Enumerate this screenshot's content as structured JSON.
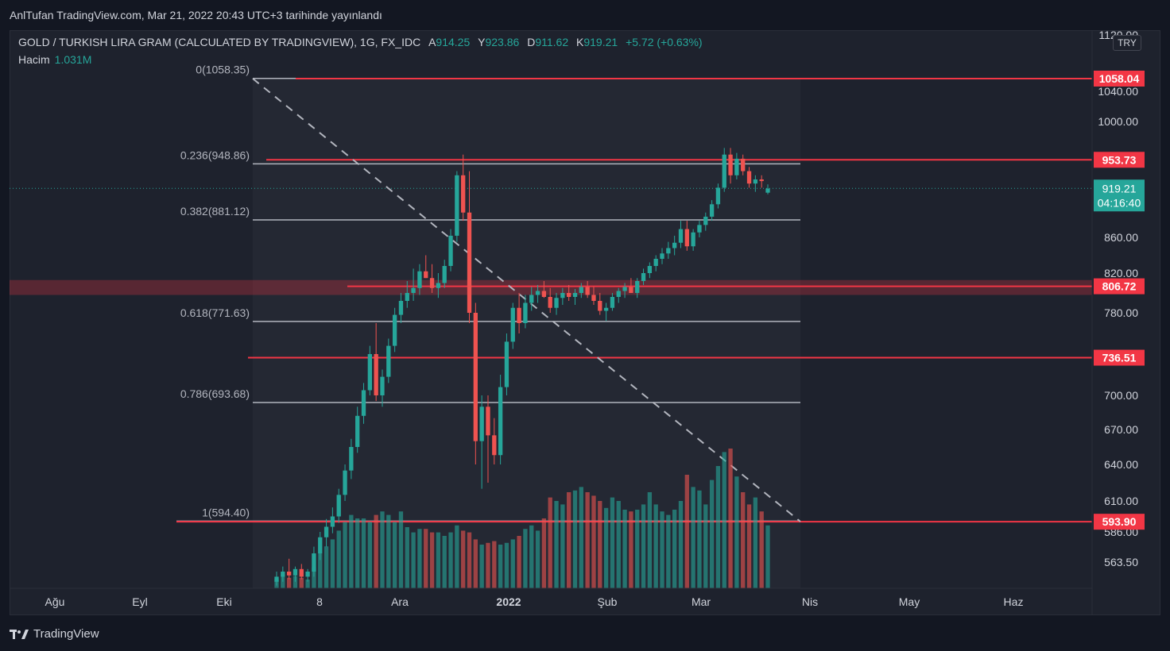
{
  "header": {
    "published": "AnlTufan TradingView.com, Mar 21, 2022 20:43 UTC+3 tarihinde yayınlandı"
  },
  "legend": {
    "symbol": "GOLD / TURKISH LIRA GRAM (CALCULATED BY TRADINGVIEW), 1G, FX_IDC",
    "open_label": "A",
    "open": "914.25",
    "high_label": "Y",
    "high": "923.86",
    "low_label": "D",
    "low": "911.62",
    "close_label": "K",
    "close": "919.21",
    "change": "+5.72 (+0.63%)",
    "volume_label": "Hacim",
    "volume": "1.031M"
  },
  "currency": "TRY",
  "brand": "TradingView",
  "chart_data": {
    "type": "candlestick",
    "y_range": [
      540,
      1130
    ],
    "y_ticks": [
      "1120.00",
      "1040.00",
      "1000.00",
      "860.00",
      "820.00",
      "780.00",
      "700.00",
      "670.00",
      "640.00",
      "610.00",
      "586.00",
      "563.50"
    ],
    "x_labels": [
      "Ağu",
      "Eyl",
      "Eki",
      "8",
      "Ara",
      "2022",
      "Şub",
      "Mar",
      "Nis",
      "May",
      "Haz"
    ],
    "last_price": "919.21",
    "countdown": "04:16:40",
    "fib_levels": [
      {
        "label": "0(1058.35)",
        "value": 1058.35
      },
      {
        "label": "0.236(948.86)",
        "value": 948.86
      },
      {
        "label": "0.382(881.12)",
        "value": 881.12
      },
      {
        "label": "0.618(771.63)",
        "value": 771.63
      },
      {
        "label": "0.786(693.68)",
        "value": 693.68
      },
      {
        "label": "1(594.40)",
        "value": 594.4
      }
    ],
    "horizontal_lines": [
      {
        "label": "1058.04",
        "value": 1058.04
      },
      {
        "label": "953.73",
        "value": 953.73
      },
      {
        "label": "806.72",
        "value": 806.72
      },
      {
        "label": "736.51",
        "value": 736.51
      },
      {
        "label": "593.90",
        "value": 593.9
      }
    ],
    "zone": {
      "from": 798,
      "to": 813
    },
    "trendline": {
      "from": [
        "2021-10-20",
        1058
      ],
      "to": [
        "2022-03-31",
        594
      ]
    },
    "candles_ohlc": [
      [
        548,
        556,
        545,
        552
      ],
      [
        552,
        560,
        548,
        556
      ],
      [
        556,
        566,
        550,
        553
      ],
      [
        553,
        560,
        548,
        558
      ],
      [
        558,
        562,
        550,
        552
      ],
      [
        552,
        558,
        548,
        556
      ],
      [
        556,
        575,
        552,
        570
      ],
      [
        570,
        586,
        565,
        582
      ],
      [
        582,
        596,
        575,
        590
      ],
      [
        590,
        605,
        585,
        598
      ],
      [
        598,
        620,
        593,
        615
      ],
      [
        615,
        640,
        610,
        635
      ],
      [
        635,
        662,
        628,
        655
      ],
      [
        655,
        690,
        650,
        682
      ],
      [
        682,
        712,
        675,
        705
      ],
      [
        705,
        748,
        700,
        740
      ],
      [
        740,
        770,
        695,
        700
      ],
      [
        700,
        725,
        690,
        718
      ],
      [
        718,
        755,
        712,
        748
      ],
      [
        748,
        785,
        742,
        778
      ],
      [
        778,
        800,
        770,
        792
      ],
      [
        792,
        812,
        785,
        800
      ],
      [
        800,
        825,
        792,
        805
      ],
      [
        805,
        830,
        798,
        822
      ],
      [
        822,
        840,
        815,
        815
      ],
      [
        815,
        830,
        800,
        805
      ],
      [
        805,
        820,
        795,
        810
      ],
      [
        810,
        835,
        805,
        828
      ],
      [
        828,
        870,
        822,
        862
      ],
      [
        862,
        940,
        855,
        935
      ],
      [
        935,
        960,
        880,
        890
      ],
      [
        890,
        940,
        770,
        780
      ],
      [
        780,
        790,
        640,
        660
      ],
      [
        660,
        700,
        620,
        690
      ],
      [
        690,
        700,
        625,
        665
      ],
      [
        665,
        680,
        640,
        648
      ],
      [
        648,
        720,
        640,
        708
      ],
      [
        708,
        760,
        700,
        752
      ],
      [
        752,
        790,
        745,
        785
      ],
      [
        785,
        800,
        760,
        770
      ],
      [
        770,
        798,
        765,
        790
      ],
      [
        790,
        806,
        782,
        798
      ],
      [
        798,
        808,
        790,
        802
      ],
      [
        802,
        812,
        795,
        796
      ],
      [
        796,
        805,
        780,
        785
      ],
      [
        785,
        800,
        778,
        795
      ],
      [
        795,
        805,
        788,
        800
      ],
      [
        800,
        808,
        792,
        796
      ],
      [
        796,
        804,
        788,
        800
      ],
      [
        800,
        810,
        795,
        806
      ],
      [
        806,
        812,
        795,
        798
      ],
      [
        798,
        806,
        788,
        792
      ],
      [
        792,
        800,
        778,
        782
      ],
      [
        782,
        790,
        772,
        785
      ],
      [
        785,
        800,
        782,
        796
      ],
      [
        796,
        805,
        790,
        802
      ],
      [
        802,
        810,
        795,
        806
      ],
      [
        806,
        815,
        800,
        800
      ],
      [
        800,
        815,
        795,
        812
      ],
      [
        812,
        825,
        808,
        820
      ],
      [
        820,
        832,
        815,
        828
      ],
      [
        828,
        840,
        822,
        836
      ],
      [
        836,
        848,
        830,
        842
      ],
      [
        842,
        855,
        836,
        848
      ],
      [
        848,
        862,
        840,
        854
      ],
      [
        854,
        880,
        848,
        870
      ],
      [
        870,
        880,
        845,
        850
      ],
      [
        850,
        870,
        845,
        866
      ],
      [
        866,
        880,
        860,
        875
      ],
      [
        875,
        890,
        868,
        885
      ],
      [
        885,
        905,
        880,
        900
      ],
      [
        900,
        925,
        895,
        920
      ],
      [
        920,
        968,
        915,
        960
      ],
      [
        960,
        968,
        925,
        935
      ],
      [
        935,
        962,
        930,
        955
      ],
      [
        955,
        960,
        935,
        940
      ],
      [
        940,
        945,
        920,
        925
      ],
      [
        925,
        935,
        915,
        930
      ],
      [
        930,
        935,
        920,
        928
      ],
      [
        914,
        924,
        912,
        919
      ]
    ],
    "volume_relative": [
      0.05,
      0.08,
      0.06,
      0.07,
      0.06,
      0.05,
      0.12,
      0.2,
      0.24,
      0.28,
      0.33,
      0.38,
      0.42,
      0.4,
      0.4,
      0.38,
      0.42,
      0.44,
      0.42,
      0.38,
      0.44,
      0.35,
      0.32,
      0.34,
      0.34,
      0.32,
      0.32,
      0.3,
      0.32,
      0.36,
      0.33,
      0.32,
      0.28,
      0.25,
      0.26,
      0.27,
      0.25,
      0.26,
      0.28,
      0.3,
      0.34,
      0.36,
      0.33,
      0.4,
      0.52,
      0.5,
      0.48,
      0.55,
      0.56,
      0.58,
      0.55,
      0.53,
      0.5,
      0.46,
      0.52,
      0.5,
      0.45,
      0.44,
      0.45,
      0.48,
      0.55,
      0.48,
      0.44,
      0.42,
      0.45,
      0.5,
      0.65,
      0.58,
      0.56,
      0.48,
      0.62,
      0.7,
      0.78,
      0.8,
      0.64,
      0.55,
      0.48,
      0.52,
      0.44,
      0.36
    ]
  },
  "colors": {
    "background": "#131722",
    "pane": "#1e222d",
    "up": "#26a69a",
    "down": "#ef5350",
    "hline": "#f23645",
    "fib": "#b2b5be"
  }
}
